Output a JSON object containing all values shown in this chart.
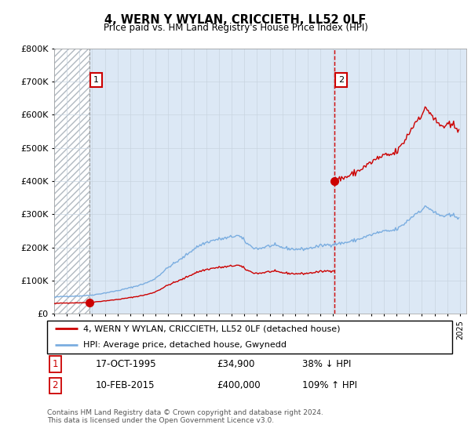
{
  "title": "4, WERN Y WYLAN, CRICCIETH, LL52 0LF",
  "subtitle": "Price paid vs. HM Land Registry's House Price Index (HPI)",
  "ylabel_ticks": [
    "£0",
    "£100K",
    "£200K",
    "£300K",
    "£400K",
    "£500K",
    "£600K",
    "£700K",
    "£800K"
  ],
  "ylim": [
    0,
    800000
  ],
  "xlim_start": 1993.0,
  "xlim_end": 2025.5,
  "sale1_x": 1995.8,
  "sale1_y": 34900,
  "sale2_x": 2015.1,
  "sale2_y": 400000,
  "sale1_label": "1",
  "sale2_label": "2",
  "red_color": "#cc0000",
  "blue_color": "#7aade0",
  "hatch_color": "#cccccc",
  "grid_color": "#c8d4e0",
  "bg_light_blue": "#dce8f5",
  "bg_white": "#ffffff",
  "legend_line1": "4, WERN Y WYLAN, CRICCIETH, LL52 0LF (detached house)",
  "legend_line2": "HPI: Average price, detached house, Gwynedd",
  "table_row1": [
    "1",
    "17-OCT-1995",
    "£34,900",
    "38% ↓ HPI"
  ],
  "table_row2": [
    "2",
    "10-FEB-2015",
    "£400,000",
    "109% ↑ HPI"
  ],
  "footnote": "Contains HM Land Registry data © Crown copyright and database right 2024.\nThis data is licensed under the Open Government Licence v3.0."
}
